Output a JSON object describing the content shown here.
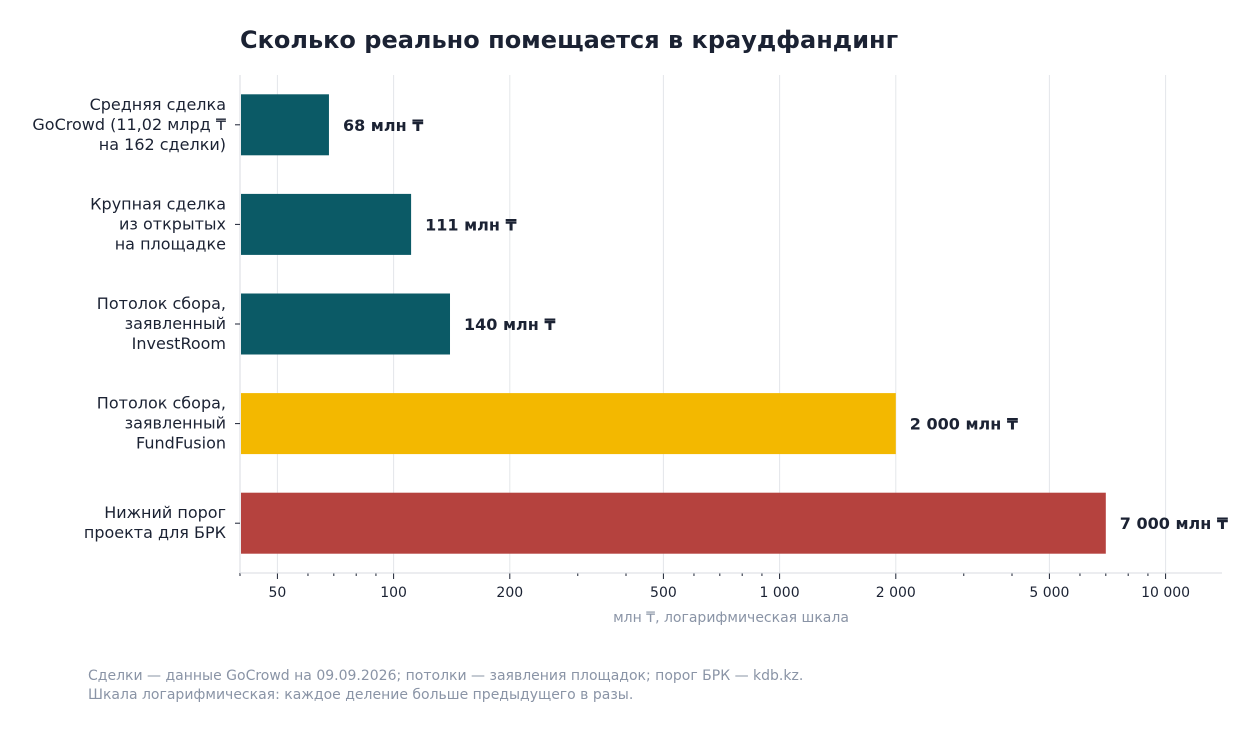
{
  "chart_data": {
    "type": "bar",
    "orientation": "horizontal",
    "title": "Сколько реально помещается в краудфандинг",
    "categories": [
      [
        "Средняя сделка",
        "GoCrowd (11,02 млрд ₸",
        "на 162 сделки)"
      ],
      [
        "Крупная сделка",
        "из открытых",
        "на площадке"
      ],
      [
        "Потолок сбора,",
        "заявленный",
        "InvestRoom"
      ],
      [
        "Потолок сбора,",
        "заявленный",
        "FundFusion"
      ],
      [
        "Нижний порог",
        "проекта для БРК"
      ]
    ],
    "values": [
      68,
      111,
      140,
      2000,
      7000
    ],
    "value_labels": [
      "68 млн ₸",
      "111 млн ₸",
      "140 млн ₸",
      "2 000 млн ₸",
      "7 000 млн ₸"
    ],
    "colors": [
      "#0b5a66",
      "#0b5a66",
      "#0b5a66",
      "#f3b800",
      "#b5423e"
    ],
    "xlabel": "млн ₸, логарифмическая шкала",
    "xscale": "log",
    "xlim": [
      40,
      14000
    ],
    "xticks": [
      50,
      100,
      200,
      500,
      1000,
      2000,
      5000,
      10000
    ],
    "xtick_labels": [
      "50",
      "100",
      "200",
      "500",
      "1 000",
      "2 000",
      "5 000",
      "10 000"
    ],
    "grid": "vertical",
    "legend": "none"
  },
  "footnotes": [
    "Сделки — данные GoCrowd на 09.09.2026; потолки — заявления площадок; порог БРК — kdb.kz.",
    "Шкала логарифмическая: каждое деление больше предыдущего в разы."
  ]
}
